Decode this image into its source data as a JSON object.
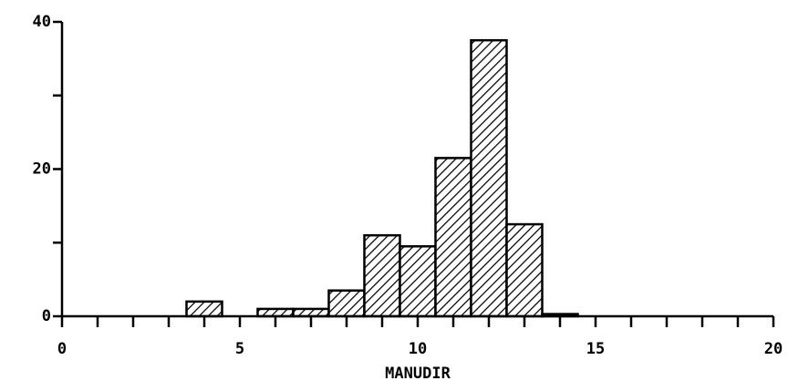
{
  "chart_data": {
    "type": "histogram",
    "xlabel": "MANUDIR",
    "bins": [
      3.5,
      4.5,
      5.5,
      6.5,
      7.5,
      8.5,
      9.5,
      10.5,
      11.5,
      12.5,
      13.5,
      14.5
    ],
    "values": [
      2,
      0,
      1,
      1,
      3.5,
      11,
      9.5,
      21.5,
      37.5,
      12.5,
      0.3
    ],
    "xlim": [
      0,
      20
    ],
    "xticks": [
      0,
      5,
      10,
      15,
      20
    ],
    "xminorticks": [
      1,
      2,
      3,
      4,
      6,
      7,
      8,
      9,
      11,
      12,
      13,
      14,
      16,
      17,
      18,
      19
    ],
    "ylim": [
      0,
      40
    ],
    "yticks": [
      0,
      20,
      40
    ],
    "yminorticks": [
      10,
      30
    ],
    "color": "#000000",
    "hatch": true
  }
}
